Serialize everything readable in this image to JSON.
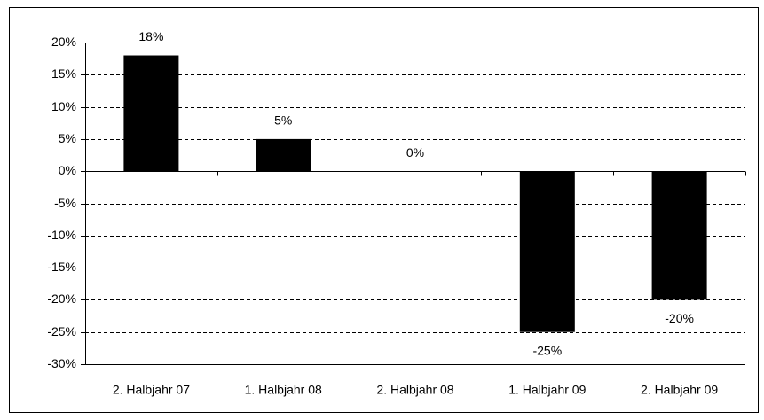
{
  "chart_data": {
    "type": "bar",
    "categories": [
      "2. Halbjahr 07",
      "1. Halbjahr 08",
      "2. Halbjahr 08",
      "1. Halbjahr 09",
      "2. Halbjahr 09"
    ],
    "values": [
      18,
      5,
      0,
      -25,
      -20
    ],
    "value_labels": [
      "18%",
      "5%",
      "0%",
      "-25%",
      "-20%"
    ],
    "color": "#000000",
    "ylim": [
      -30,
      20
    ],
    "yticks": [
      {
        "value": 20,
        "label": "20%"
      },
      {
        "value": 15,
        "label": "15%"
      },
      {
        "value": 10,
        "label": "10%"
      },
      {
        "value": 5,
        "label": "5%"
      },
      {
        "value": 0,
        "label": "0%"
      },
      {
        "value": -5,
        "label": "-5%"
      },
      {
        "value": -10,
        "label": "-10%"
      },
      {
        "value": -15,
        "label": "-15%"
      },
      {
        "value": -20,
        "label": "-20%"
      },
      {
        "value": -25,
        "label": "-25%"
      },
      {
        "value": -30,
        "label": "-30%"
      }
    ],
    "grid": true
  }
}
